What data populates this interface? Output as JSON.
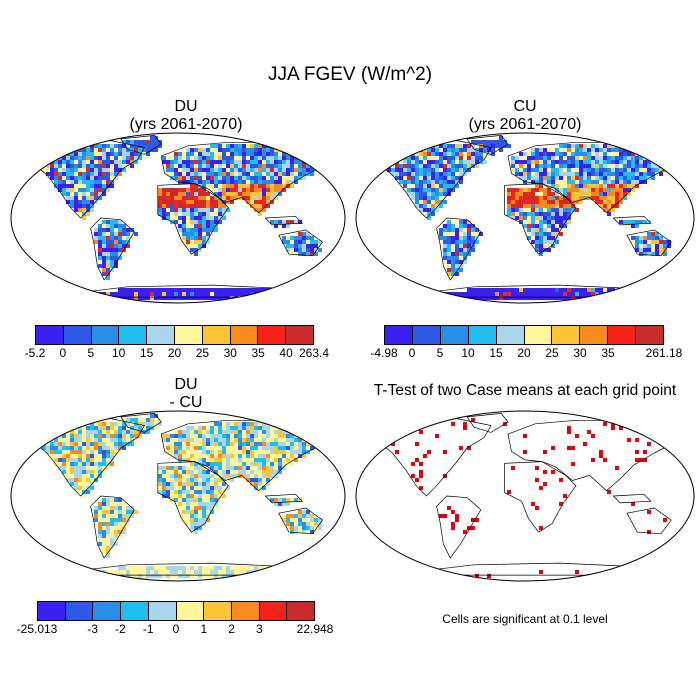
{
  "figure": {
    "title": "JJA FGEV (W/m^2)"
  },
  "panels": {
    "du": {
      "title": "DU",
      "subtitle": "(yrs 2061-2070)"
    },
    "cu": {
      "title": "CU",
      "subtitle": "(yrs 2061-2070)"
    },
    "diff": {
      "title": "DU",
      "subtitle": "- CU"
    },
    "ttest": {
      "title": "T-Test of two Case means at each grid point",
      "note": "Cells are significant at 0.1 level",
      "marker_color": "#e8000b"
    }
  },
  "colorbars": {
    "du": {
      "colors": [
        "#3b1ff5",
        "#2e58e6",
        "#2a8ee8",
        "#1fbdf0",
        "#a8d6ea",
        "#fff59a",
        "#fbc534",
        "#f98a1c",
        "#f5221a",
        "#cc2b2b"
      ],
      "labels": [
        "-5.2",
        "0",
        "5",
        "10",
        "15",
        "20",
        "25",
        "30",
        "35",
        "40",
        "263.4"
      ]
    },
    "cu": {
      "colors": [
        "#3b1ff5",
        "#2e58e6",
        "#2a8ee8",
        "#1fbdf0",
        "#a8d6ea",
        "#fff59a",
        "#fbc534",
        "#f98a1c",
        "#f5221a",
        "#cc2b2b"
      ],
      "labels": [
        "-4.98",
        "0",
        "5",
        "10",
        "15",
        "20",
        "25",
        "30",
        "35",
        "",
        "261.18"
      ]
    },
    "diff": {
      "colors": [
        "#3b1ff5",
        "#2e58e6",
        "#2a8ee8",
        "#1fbdf0",
        "#a8d6ea",
        "#fff59a",
        "#fbc534",
        "#f98a1c",
        "#f5221a",
        "#cc2b2b"
      ],
      "labels": [
        "-25.013",
        "",
        "-3",
        "-2",
        "-1",
        "0",
        "1",
        "2",
        "3",
        "",
        "22.948"
      ]
    }
  }
}
